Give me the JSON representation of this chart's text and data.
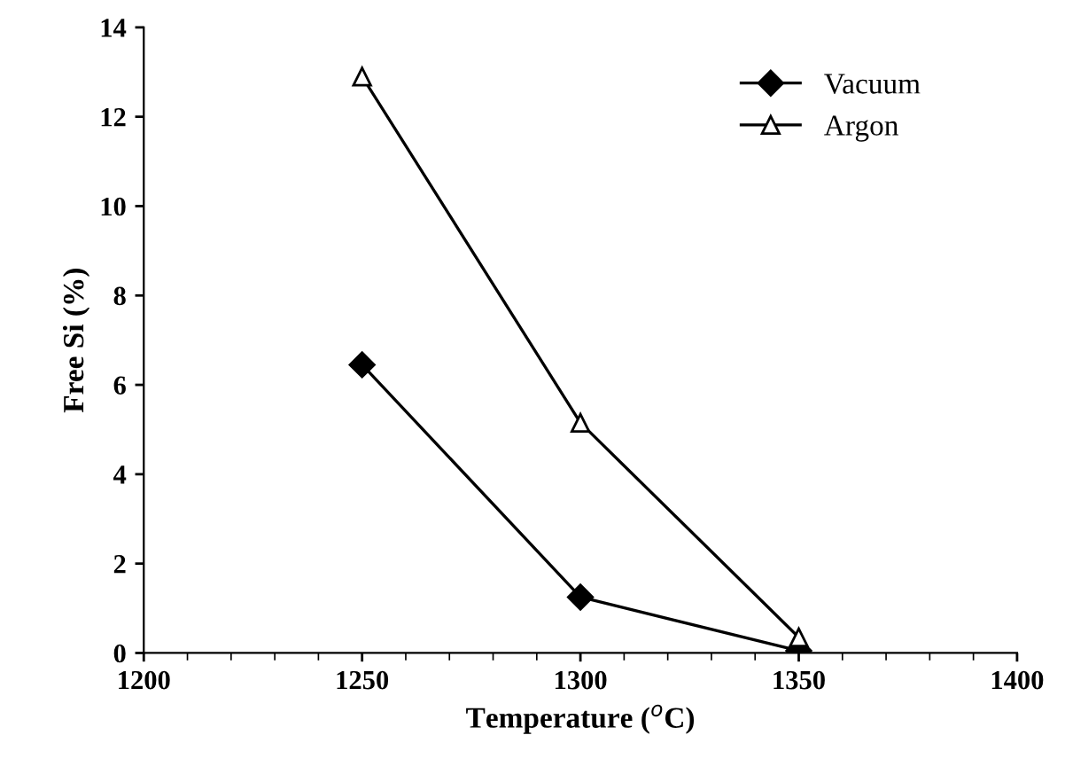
{
  "chart_data": {
    "type": "line",
    "xlabel": "Temperature ($^{o}$C)",
    "ylabel": "Free Si (%)",
    "x": [
      1250,
      1300,
      1350
    ],
    "series": [
      {
        "name": "Vacuum",
        "color": "#000000",
        "marker": "diamond",
        "values": [
          6.45,
          1.25,
          0.05
        ]
      },
      {
        "name": "Argon",
        "color": "#000000",
        "marker": "triangle",
        "values": [
          12.9,
          5.15,
          0.35
        ]
      }
    ],
    "xlim": [
      1200,
      1400
    ],
    "xticks": [
      1200,
      1250,
      1300,
      1350,
      1400
    ],
    "ylim": [
      0,
      14
    ],
    "yticks": [
      0,
      2,
      4,
      6,
      8,
      10,
      12,
      14
    ],
    "grid": false,
    "legend": "top right",
    "line_style": "solid"
  }
}
